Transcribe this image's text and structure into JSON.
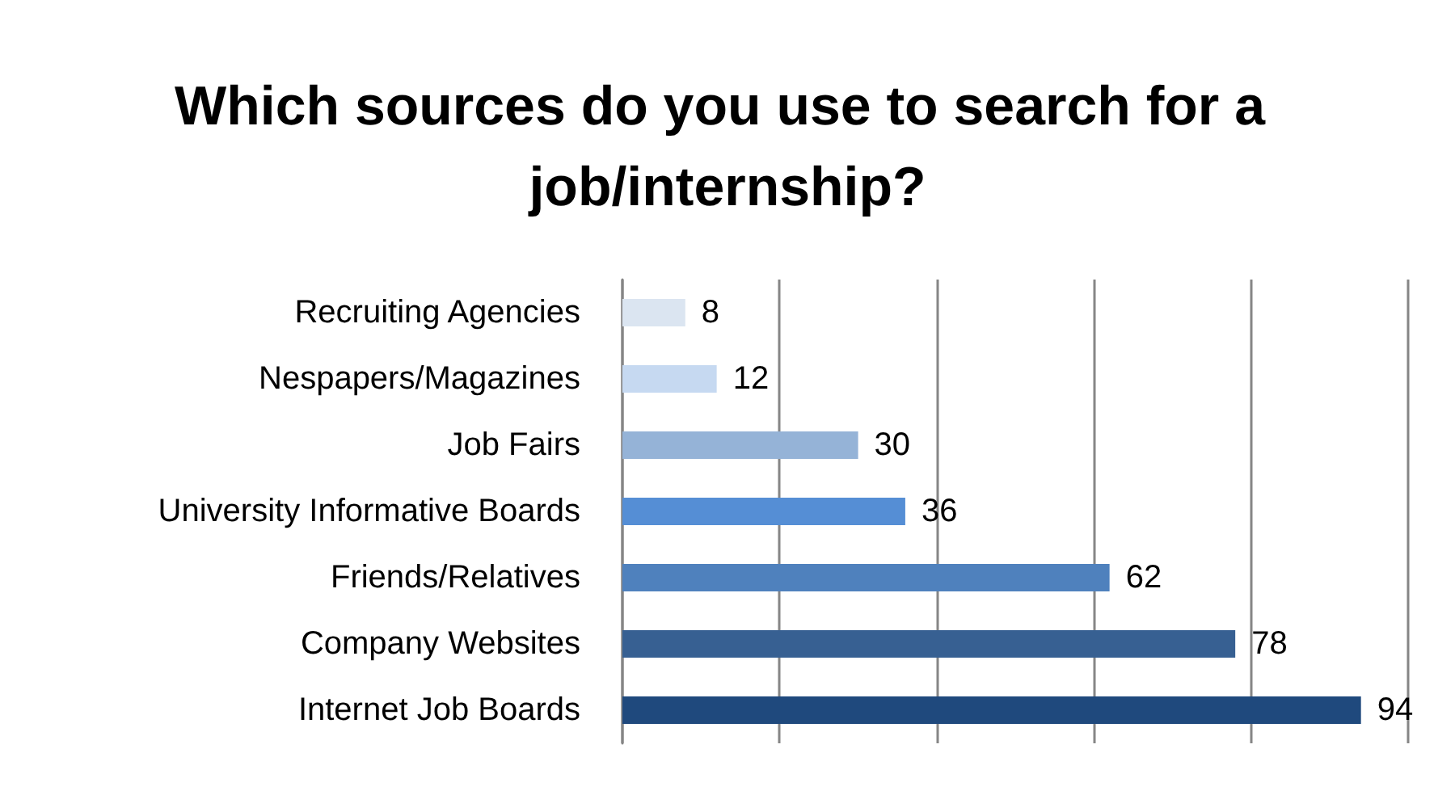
{
  "chart_data": {
    "type": "bar",
    "orientation": "horizontal",
    "title": "Which sources do you use to search for a job/internship?",
    "categories": [
      "Recruiting Agencies",
      "Nespapers/Magazines",
      "Job Fairs",
      "University Informative Boards",
      "Friends/Relatives",
      "Company Websites",
      "Internet Job Boards"
    ],
    "values": [
      8,
      12,
      30,
      36,
      62,
      78,
      94
    ],
    "colors": [
      "#dbe5f1",
      "#c6d9f1",
      "#95b3d7",
      "#558ed5",
      "#4f81bd",
      "#376092",
      "#1f497d"
    ],
    "xlim": [
      0,
      100
    ],
    "xticks": [
      {
        "value": 0,
        "label": null
      },
      {
        "value": 20,
        "label": null
      },
      {
        "value": 40,
        "label": null
      },
      {
        "value": 60,
        "label": null
      },
      {
        "value": 80,
        "label": null
      },
      {
        "value": 100,
        "label": null
      }
    ],
    "grid": "x",
    "tick_labels": "y",
    "data_labels": true
  }
}
